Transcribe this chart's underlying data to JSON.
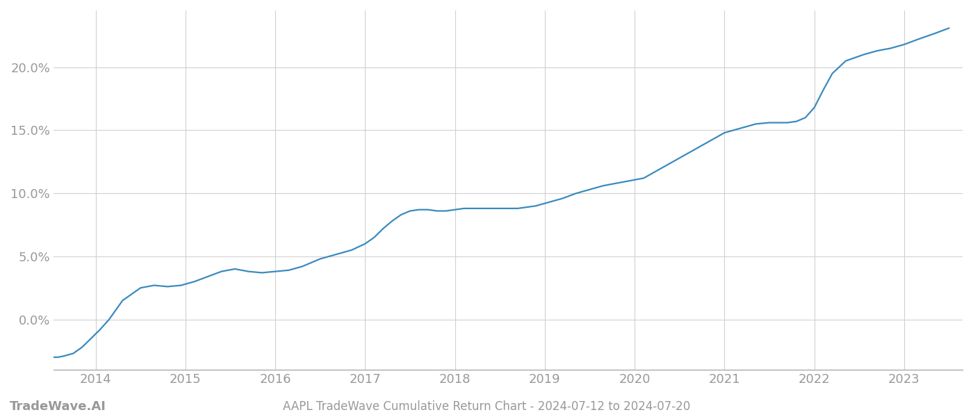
{
  "title": "AAPL TradeWave Cumulative Return Chart - 2024-07-12 to 2024-07-20",
  "watermark": "TradeWave.AI",
  "line_color": "#3a8abf",
  "background_color": "#ffffff",
  "grid_color": "#d0d0d0",
  "x_values": [
    2013.53,
    2013.58,
    2013.65,
    2013.75,
    2013.85,
    2013.95,
    2014.05,
    2014.15,
    2014.3,
    2014.5,
    2014.65,
    2014.8,
    2014.95,
    2015.1,
    2015.25,
    2015.4,
    2015.55,
    2015.7,
    2015.85,
    2016.0,
    2016.15,
    2016.3,
    2016.5,
    2016.7,
    2016.85,
    2017.0,
    2017.1,
    2017.2,
    2017.3,
    2017.4,
    2017.5,
    2017.6,
    2017.7,
    2017.8,
    2017.9,
    2018.0,
    2018.1,
    2018.2,
    2018.3,
    2018.4,
    2018.5,
    2018.6,
    2018.7,
    2018.8,
    2018.9,
    2019.0,
    2019.1,
    2019.2,
    2019.35,
    2019.5,
    2019.65,
    2019.8,
    2019.95,
    2020.1,
    2020.25,
    2020.4,
    2020.55,
    2020.7,
    2020.85,
    2021.0,
    2021.1,
    2021.2,
    2021.35,
    2021.5,
    2021.6,
    2021.7,
    2021.8,
    2021.9,
    2022.0,
    2022.1,
    2022.2,
    2022.35,
    2022.55,
    2022.7,
    2022.85,
    2023.0,
    2023.15,
    2023.35,
    2023.5
  ],
  "y_values": [
    -0.03,
    -0.03,
    -0.029,
    -0.027,
    -0.022,
    -0.015,
    -0.008,
    0.0,
    0.015,
    0.025,
    0.027,
    0.026,
    0.027,
    0.03,
    0.034,
    0.038,
    0.04,
    0.038,
    0.037,
    0.038,
    0.039,
    0.042,
    0.048,
    0.052,
    0.055,
    0.06,
    0.065,
    0.072,
    0.078,
    0.083,
    0.086,
    0.087,
    0.087,
    0.086,
    0.086,
    0.087,
    0.088,
    0.088,
    0.088,
    0.088,
    0.088,
    0.088,
    0.088,
    0.089,
    0.09,
    0.092,
    0.094,
    0.096,
    0.1,
    0.103,
    0.106,
    0.108,
    0.11,
    0.112,
    0.118,
    0.124,
    0.13,
    0.136,
    0.142,
    0.148,
    0.15,
    0.152,
    0.155,
    0.156,
    0.156,
    0.156,
    0.157,
    0.16,
    0.168,
    0.182,
    0.195,
    0.205,
    0.21,
    0.213,
    0.215,
    0.218,
    0.222,
    0.227,
    0.231
  ],
  "xlim": [
    2013.53,
    2023.65
  ],
  "ylim": [
    -0.04,
    0.245
  ],
  "yticks": [
    0.0,
    0.05,
    0.1,
    0.15,
    0.2
  ],
  "ytick_labels": [
    "0.0%",
    "5.0%",
    "10.0%",
    "15.0%",
    "20.0%"
  ],
  "xticks": [
    2014,
    2015,
    2016,
    2017,
    2018,
    2019,
    2020,
    2021,
    2022,
    2023
  ],
  "xtick_labels": [
    "2014",
    "2015",
    "2016",
    "2017",
    "2018",
    "2019",
    "2020",
    "2021",
    "2022",
    "2023"
  ],
  "tick_color": "#999999",
  "label_fontsize": 13,
  "watermark_fontsize": 13,
  "title_fontsize": 12,
  "line_width": 1.6
}
